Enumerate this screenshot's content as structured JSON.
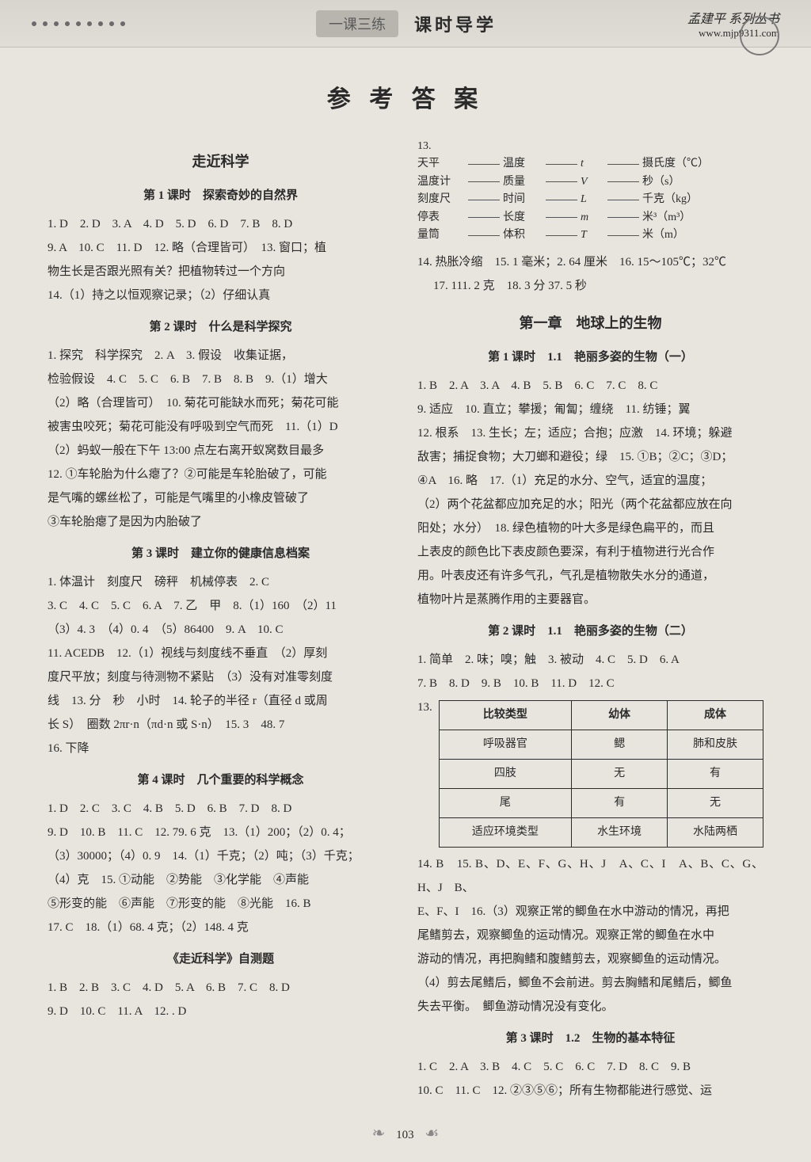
{
  "header": {
    "badge": "一课三练",
    "title": "课时导学",
    "brand": "孟建平 系列丛书",
    "url": "www.mjp9311.com"
  },
  "main_title": "参 考 答 案",
  "left": {
    "section1": "走近科学",
    "lesson1_title": "第 1 课时　探索奇妙的自然界",
    "lesson1_l1": "1. D　2. D　3. A　4. D　5. D　6. D　7. B　8. D",
    "lesson1_l2": "9. A　10. C　11. D　12. 略（合理皆可）　13. 窗口；植",
    "lesson1_l3": "物生长是否跟光照有关？把植物转过一个方向",
    "lesson1_l4": "14.（1）持之以恒观察记录；（2）仔细认真",
    "lesson2_title": "第 2 课时　什么是科学探究",
    "lesson2_l1": "1. 探究　科学探究　2. A　3. 假设　收集证据，",
    "lesson2_l2": "检验假设　4. C　5. C　6. B　7. B　8. B　9.（1）增大",
    "lesson2_l3": "（2）略（合理皆可）　10. 菊花可能缺水而死；菊花可能",
    "lesson2_l4": "被害虫咬死；菊花可能没有呼吸到空气而死　11.（1）D",
    "lesson2_l5": "（2）蚂蚁一般在下午 13:00 点左右离开蚁窝数目最多",
    "lesson2_l6": "12. ①车轮胎为什么瘪了？②可能是车轮胎破了，可能",
    "lesson2_l7": "是气嘴的螺丝松了，可能是气嘴里的小橡皮管破了",
    "lesson2_l8": "③车轮胎瘪了是因为内胎破了",
    "lesson3_title": "第 3 课时　建立你的健康信息档案",
    "lesson3_l1": "1. 体温计　刻度尺　磅秤　机械停表　2. C",
    "lesson3_l2": "3. C　4. C　5. C　6. A　7. 乙　甲　8.（1）160　（2）11",
    "lesson3_l3": "（3）4. 3　（4）0. 4　（5）86400　9. A　10. C",
    "lesson3_l4": "11. ACEDB　12.（1）视线与刻度线不垂直　（2）厚刻",
    "lesson3_l5": "度尺平放；刻度与待测物不紧贴　（3）没有对准零刻度",
    "lesson3_l6": "线　13. 分　秒　小时　14. 轮子的半径 r（直径 d 或周",
    "lesson3_l7": "长 S）　圈数 2πr·n（πd·n 或 S·n）　15. 3　48. 7",
    "lesson3_l8": "16. 下降",
    "lesson4_title": "第 4 课时　几个重要的科学概念",
    "lesson4_l1": "1. D　2. C　3. C　4. B　5. D　6. B　7. D　8. D",
    "lesson4_l2": "9. D　10. B　11. C　12. 79. 6 克　13.（1）200；（2）0. 4；",
    "lesson4_l3": "（3）30000；（4）0. 9　14.（1）千克；（2）吨；（3）千克；",
    "lesson4_l4": "（4）克　15. ①动能　②势能　③化学能　④声能",
    "lesson4_l5": "⑤形变的能　⑥声能　⑦形变的能　⑧光能　16. B",
    "lesson4_l6": "17. C　18.（1）68. 4 克；（2）148. 4 克",
    "selftest_title": "《走近科学》自测题",
    "selftest_l1": "1. B　2. B　3. C　4. D　5. A　6. B　7. C　8. D",
    "selftest_l2": "9. D　10. C　11. A　12. . D"
  },
  "right": {
    "q13_label": "13.",
    "q13": [
      {
        "a": "天平",
        "b": "温度",
        "c": "t",
        "d": "摄氏度（℃）"
      },
      {
        "a": "温度计",
        "b": "质量",
        "c": "V",
        "d": "秒（s）"
      },
      {
        "a": "刻度尺",
        "b": "时间",
        "c": "L",
        "d": "千克（kg）"
      },
      {
        "a": "停表",
        "b": "长度",
        "c": "m",
        "d": "米³（m³）"
      },
      {
        "a": "量筒",
        "b": "体积",
        "c": "T",
        "d": "米（m）"
      }
    ],
    "top_l1": "14. 热胀冷缩　15. 1 毫米；2. 64 厘米　16. 15～105℃；32℃",
    "top_l2": "17. 111. 2 克　18. 3 分 37. 5 秒",
    "chapter1": "第一章　地球上的生物",
    "lessonA_title": "第 1 课时　1.1　艳丽多姿的生物（一）",
    "lessonA_l1": "1. B　2. A　3. A　4. B　5. B　6. C　7. C　8. C",
    "lessonA_l2": "9. 适应　10. 直立；攀援；匍匐；缠绕　11. 纺锤；翼",
    "lessonA_l3": "12. 根系　13. 生长；左；适应；合抱；应激　14. 环境；躲避",
    "lessonA_l4": "敌害；捕捉食物；大刀螂和避役；绿　15. ①B；②C；③D；",
    "lessonA_l5": "④A　16. 略　17.（1）充足的水分、空气，适宜的温度；",
    "lessonA_l6": "（2）两个花盆都应加充足的水；阳光（两个花盆都应放在向",
    "lessonA_l7": "阳处；水分）　18. 绿色植物的叶大多是绿色扁平的，而且",
    "lessonA_l8": "上表皮的颜色比下表皮颜色要深，有利于植物进行光合作",
    "lessonA_l9": "用。叶表皮还有许多气孔，气孔是植物散失水分的通道，",
    "lessonA_l10": "植物叶片是蒸腾作用的主要器官。",
    "lessonB_title": "第 2 课时　1.1　艳丽多姿的生物（二）",
    "lessonB_l1": "1. 简单　2. 味；嗅；触　3. 被动　4. C　5. D　6. A",
    "lessonB_l2": "7. B　8. D　9. B　10. B　11. D　12. C",
    "table_q": "13.",
    "table": {
      "headers": [
        "比较类型",
        "幼体",
        "成体"
      ],
      "rows": [
        [
          "呼吸器官",
          "鳃",
          "肺和皮肤"
        ],
        [
          "四肢",
          "无",
          "有"
        ],
        [
          "尾",
          "有",
          "无"
        ],
        [
          "适应环境类型",
          "水生环境",
          "水陆两栖"
        ]
      ]
    },
    "lessonB_l3": "14. B　15. B、D、E、F、G、H、J　A、C、I　A、B、C、G、H、J　B、",
    "lessonB_l4": "E、F、I　16.（3）观察正常的鲫鱼在水中游动的情况，再把",
    "lessonB_l5": "尾鳍剪去，观察鲫鱼的运动情况。观察正常的鲫鱼在水中",
    "lessonB_l6": "游动的情况，再把胸鳍和腹鳍剪去，观察鲫鱼的运动情况。",
    "lessonB_l7": "（4）剪去尾鳍后，鲫鱼不会前进。剪去胸鳍和尾鳍后，鲫鱼",
    "lessonB_l8": "失去平衡。　鲫鱼游动情况没有变化。",
    "lessonC_title": "第 3 课时　1.2　生物的基本特征",
    "lessonC_l1": "1. C　2. A　3. B　4. C　5. C　6. C　7. D　8. C　9. B",
    "lessonC_l2": "10. C　11. C　12. ②③⑤⑥；所有生物都能进行感觉、运"
  },
  "footer": {
    "page": "103"
  }
}
